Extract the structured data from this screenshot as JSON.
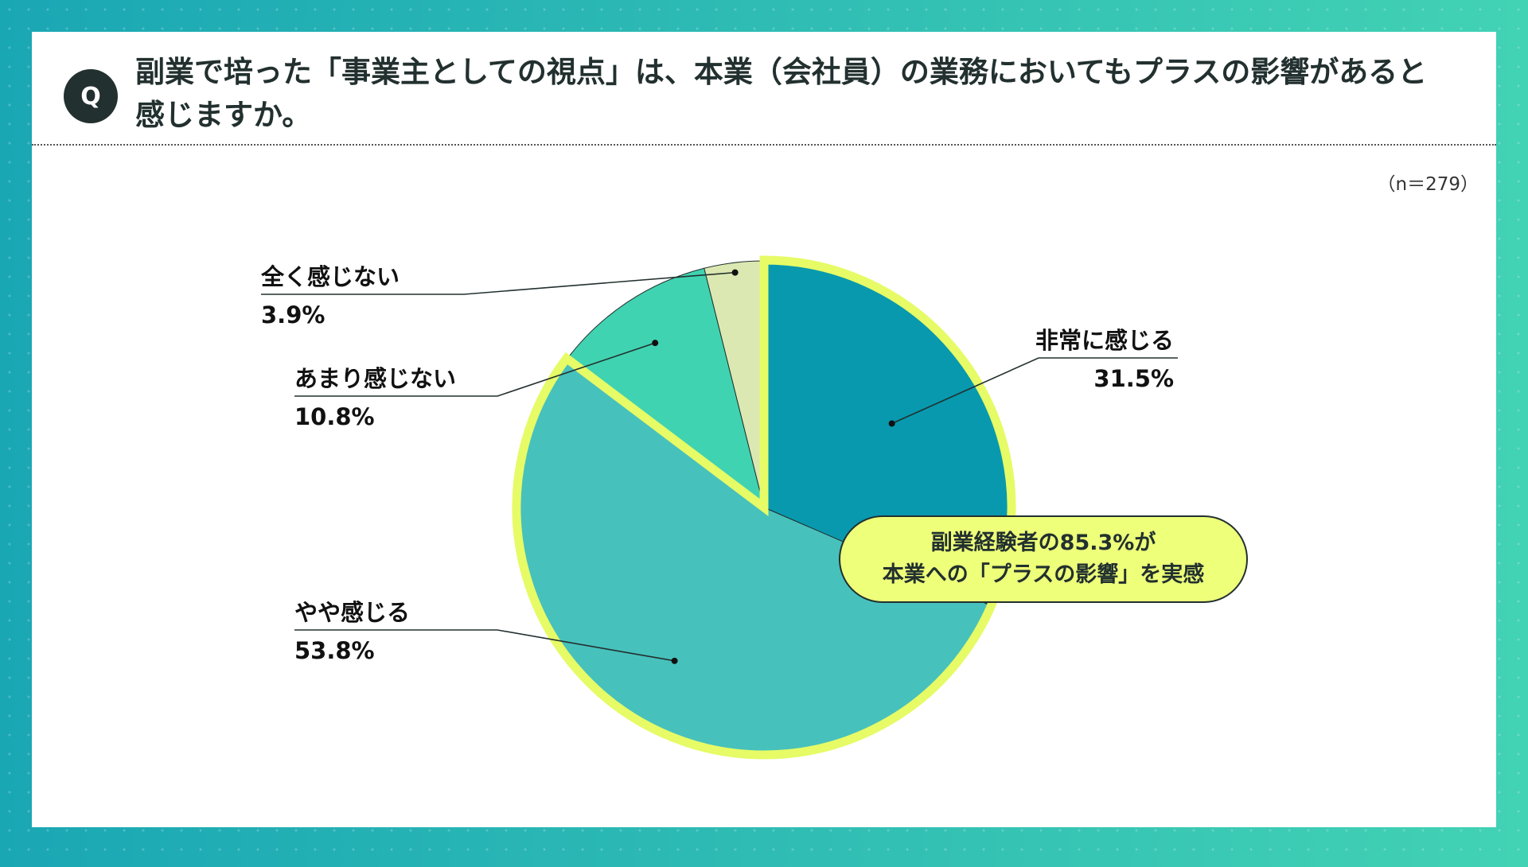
{
  "header": {
    "badge": "Q",
    "question": "副業で培った「事業主としての視点」は、本業（会社員）の業務においてもプラスの影響があると感じますか。",
    "sample": "（n＝279）"
  },
  "callout": {
    "line1": "副業経験者の85.3%が",
    "line2": "本業への「プラスの影響」を実感"
  },
  "colors": {
    "highlight": "#e6fb66",
    "slices": [
      "#0899ae",
      "#47c1bc",
      "#40d3b1",
      "#dce8b1"
    ]
  },
  "chart_data": {
    "type": "pie",
    "start": "12 o'clock, clockwise",
    "slices": [
      {
        "label": "非常に感じる",
        "value": 31.5,
        "value_label": "31.5%"
      },
      {
        "label": "やや感じる",
        "value": 53.8,
        "value_label": "53.8%"
      },
      {
        "label": "あまり感じない",
        "value": 10.8,
        "value_label": "10.8%"
      },
      {
        "label": "全く感じない",
        "value": 3.9,
        "value_label": "3.9%"
      }
    ],
    "highlighted": [
      "非常に感じる",
      "やや感じる"
    ]
  }
}
